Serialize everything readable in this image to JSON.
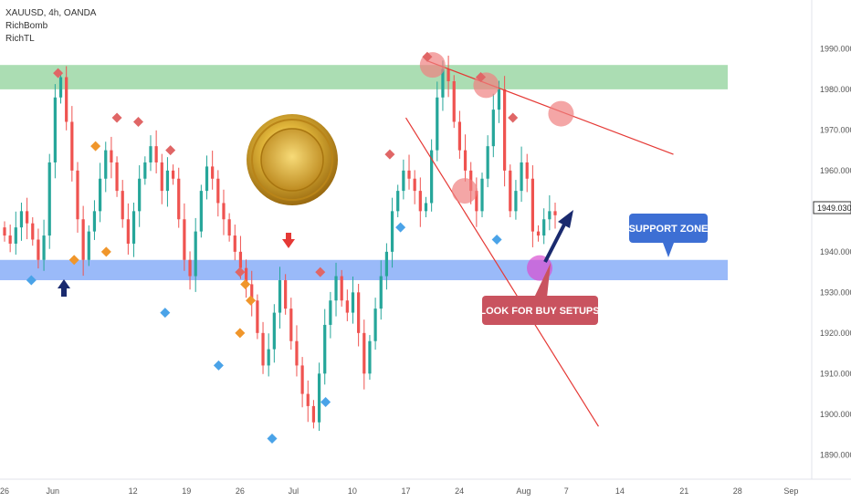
{
  "legend": {
    "symbol": "XAUUSD, 4h, OANDA",
    "indicator_1": "RichBomb",
    "indicator_2": "RichTL"
  },
  "colors": {
    "up": "#26a69a",
    "down": "#ef5350",
    "resistance_zone": "#8fd19a",
    "support_zone": "#6f9cf7",
    "trendline": "#e53935",
    "support_callout": "#3d6fd4",
    "buy_callout": "#c9535f",
    "arrow_dark": "#1a2a6e"
  },
  "chart_data": {
    "type": "candlestick",
    "symbol": "XAUUSD",
    "timeframe": "4h",
    "broker": "OANDA",
    "ylim": [
      1884,
      2002
    ],
    "y_ticks": [
      1890,
      1900,
      1910,
      1920,
      1930,
      1940,
      1950,
      1960,
      1970,
      1980,
      1990
    ],
    "y_tick_labels": [
      "1890.000",
      "1900.000",
      "1910.000",
      "1920.000",
      "1930.000",
      "1940.000",
      "1950.000",
      "1960.000",
      "1970.000",
      "1980.000",
      "1990.000"
    ],
    "x_tick_labels": [
      "26",
      "Jun",
      "12",
      "19",
      "26",
      "Jul",
      "10",
      "17",
      "24",
      "Aug",
      "7",
      "14",
      "21",
      "28",
      "Sep"
    ],
    "x_tick_index": [
      0,
      9,
      24,
      34,
      44,
      54,
      65,
      75,
      85,
      97,
      105,
      115,
      127,
      137,
      147
    ],
    "last_price": "1949.030",
    "closes": [
      1944,
      1942,
      1946,
      1950,
      1947,
      1943,
      1938,
      1944,
      1962,
      1978,
      1983,
      1972,
      1960,
      1948,
      1938,
      1945,
      1950,
      1958,
      1965,
      1962,
      1955,
      1948,
      1942,
      1950,
      1958,
      1962,
      1966,
      1962,
      1955,
      1960,
      1958,
      1948,
      1938,
      1934,
      1945,
      1955,
      1961,
      1958,
      1952,
      1948,
      1944,
      1940,
      1936,
      1932,
      1928,
      1920,
      1912,
      1916,
      1925,
      1933,
      1926,
      1918,
      1912,
      1905,
      1902,
      1898,
      1910,
      1922,
      1928,
      1934,
      1928,
      1925,
      1930,
      1920,
      1910,
      1918,
      1926,
      1934,
      1940,
      1950,
      1955,
      1960,
      1958,
      1955,
      1950,
      1952,
      1965,
      1978,
      1985,
      1982,
      1972,
      1965,
      1960,
      1955,
      1950,
      1958,
      1966,
      1975,
      1980,
      1960,
      1950,
      1955,
      1962,
      1958,
      1945,
      1944,
      1948,
      1950,
      1949
    ],
    "zones": [
      {
        "name": "resistance",
        "low": 1980,
        "high": 1986
      },
      {
        "name": "support",
        "low": 1933,
        "high": 1938
      }
    ],
    "trendlines": [
      {
        "from": [
          79,
          1987
        ],
        "to": [
          125,
          1964
        ]
      },
      {
        "from": [
          75,
          1973
        ],
        "to": [
          111,
          1897
        ]
      }
    ],
    "bearish_markers": [
      [
        10,
        1984
      ],
      [
        21,
        1973
      ],
      [
        25,
        1972
      ],
      [
        31,
        1965
      ],
      [
        44,
        1935
      ],
      [
        59,
        1935
      ],
      [
        72,
        1964
      ],
      [
        79,
        1988
      ],
      [
        89,
        1983
      ],
      [
        95,
        1973
      ]
    ],
    "bullish_markers": [
      [
        5,
        1933
      ],
      [
        30,
        1925
      ],
      [
        40,
        1912
      ],
      [
        50,
        1894
      ],
      [
        60,
        1903
      ],
      [
        74,
        1946
      ],
      [
        92,
        1943
      ]
    ],
    "orange_markers": [
      [
        13,
        1938
      ],
      [
        17,
        1966
      ],
      [
        19,
        1940
      ],
      [
        44,
        1920
      ],
      [
        45,
        1932
      ],
      [
        46,
        1928
      ]
    ],
    "highlight_circles": [
      {
        "x": 80,
        "y": 1986,
        "color": "#f08080"
      },
      {
        "x": 90,
        "y": 1981,
        "color": "#f08080"
      },
      {
        "x": 104,
        "y": 1974,
        "color": "#f08080"
      },
      {
        "x": 86,
        "y": 1955,
        "color": "#f08080"
      },
      {
        "x": 100,
        "y": 1936,
        "color": "#d94fd2"
      }
    ]
  },
  "callouts": {
    "support_zone": "SUPPORT ZONE",
    "buy_setups": "LOOK FOR BUY SETUPS"
  }
}
